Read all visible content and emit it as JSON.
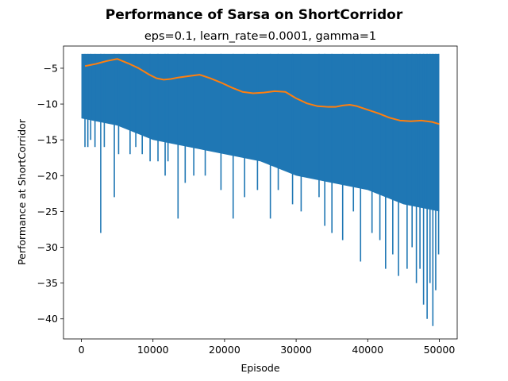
{
  "chart_data": {
    "type": "line",
    "suptitle": "Performance of Sarsa on ShortCorridor",
    "title": "eps=0.1, learn_rate=0.0001, gamma=1",
    "xlabel": "Episode",
    "ylabel": "Performance at ShortCorridor",
    "xlim": [
      -2500,
      52500
    ],
    "ylim": [
      -42.8,
      -1.9
    ],
    "xticks": [
      0,
      10000,
      20000,
      30000,
      40000,
      50000
    ],
    "yticks": [
      -5,
      -10,
      -15,
      -20,
      -25,
      -30,
      -35,
      -40
    ],
    "grid": false,
    "legend": "none",
    "series": [
      {
        "role": "per-episode performance (dense, drawn as band with spikes)",
        "color": "#1f77b4",
        "top_value": -3,
        "band_bottom": {
          "x": [
            0,
            5000,
            10000,
            15000,
            20000,
            25000,
            30000,
            35000,
            40000,
            45000,
            50000
          ],
          "y": [
            -12,
            -13,
            -15,
            -16,
            -17,
            -18,
            -20,
            -21,
            -22,
            -24,
            -25
          ]
        },
        "spikes": [
          {
            "x": 500,
            "y": -16
          },
          {
            "x": 900,
            "y": -16
          },
          {
            "x": 1300,
            "y": -15
          },
          {
            "x": 1900,
            "y": -16
          },
          {
            "x": 2700,
            "y": -28
          },
          {
            "x": 3200,
            "y": -16
          },
          {
            "x": 4600,
            "y": -23
          },
          {
            "x": 5200,
            "y": -17
          },
          {
            "x": 6800,
            "y": -17
          },
          {
            "x": 7600,
            "y": -16
          },
          {
            "x": 8500,
            "y": -17
          },
          {
            "x": 9600,
            "y": -18
          },
          {
            "x": 10700,
            "y": -18
          },
          {
            "x": 11700,
            "y": -20
          },
          {
            "x": 12100,
            "y": -18
          },
          {
            "x": 13500,
            "y": -26
          },
          {
            "x": 14500,
            "y": -21
          },
          {
            "x": 15700,
            "y": -20
          },
          {
            "x": 17300,
            "y": -20
          },
          {
            "x": 19500,
            "y": -22
          },
          {
            "x": 21200,
            "y": -26
          },
          {
            "x": 22800,
            "y": -23
          },
          {
            "x": 24600,
            "y": -22
          },
          {
            "x": 26400,
            "y": -26
          },
          {
            "x": 27500,
            "y": -22
          },
          {
            "x": 29500,
            "y": -24
          },
          {
            "x": 30700,
            "y": -25
          },
          {
            "x": 33200,
            "y": -23
          },
          {
            "x": 34000,
            "y": -27
          },
          {
            "x": 35000,
            "y": -28
          },
          {
            "x": 36500,
            "y": -29
          },
          {
            "x": 38000,
            "y": -25
          },
          {
            "x": 39000,
            "y": -32
          },
          {
            "x": 40600,
            "y": -28
          },
          {
            "x": 41700,
            "y": -29
          },
          {
            "x": 42500,
            "y": -33
          },
          {
            "x": 43500,
            "y": -31
          },
          {
            "x": 44300,
            "y": -34
          },
          {
            "x": 45500,
            "y": -33
          },
          {
            "x": 46200,
            "y": -30
          },
          {
            "x": 46800,
            "y": -35
          },
          {
            "x": 47300,
            "y": -33
          },
          {
            "x": 47800,
            "y": -38
          },
          {
            "x": 48300,
            "y": -40
          },
          {
            "x": 48700,
            "y": -35
          },
          {
            "x": 49100,
            "y": -41
          },
          {
            "x": 49500,
            "y": -36
          },
          {
            "x": 49900,
            "y": -31
          }
        ]
      },
      {
        "role": "moving average",
        "color": "#ff7f0e",
        "x": [
          500,
          2000,
          3500,
          5000,
          6500,
          8000,
          9500,
          10500,
          11500,
          12500,
          13500,
          15000,
          16500,
          18000,
          19500,
          21000,
          22500,
          24000,
          25500,
          27000,
          28500,
          30000,
          31500,
          33000,
          34500,
          35500,
          36500,
          37500,
          38500,
          40000,
          41500,
          43000,
          44500,
          46000,
          47500,
          49000,
          50000
        ],
        "y": [
          -4.7,
          -4.4,
          -4.0,
          -3.7,
          -4.3,
          -5.0,
          -5.9,
          -6.4,
          -6.6,
          -6.5,
          -6.3,
          -6.1,
          -5.9,
          -6.4,
          -7.0,
          -7.7,
          -8.3,
          -8.5,
          -8.4,
          -8.2,
          -8.3,
          -9.2,
          -9.9,
          -10.3,
          -10.4,
          -10.4,
          -10.2,
          -10.1,
          -10.3,
          -10.8,
          -11.3,
          -11.9,
          -12.3,
          -12.4,
          -12.3,
          -12.5,
          -12.8
        ]
      }
    ]
  }
}
